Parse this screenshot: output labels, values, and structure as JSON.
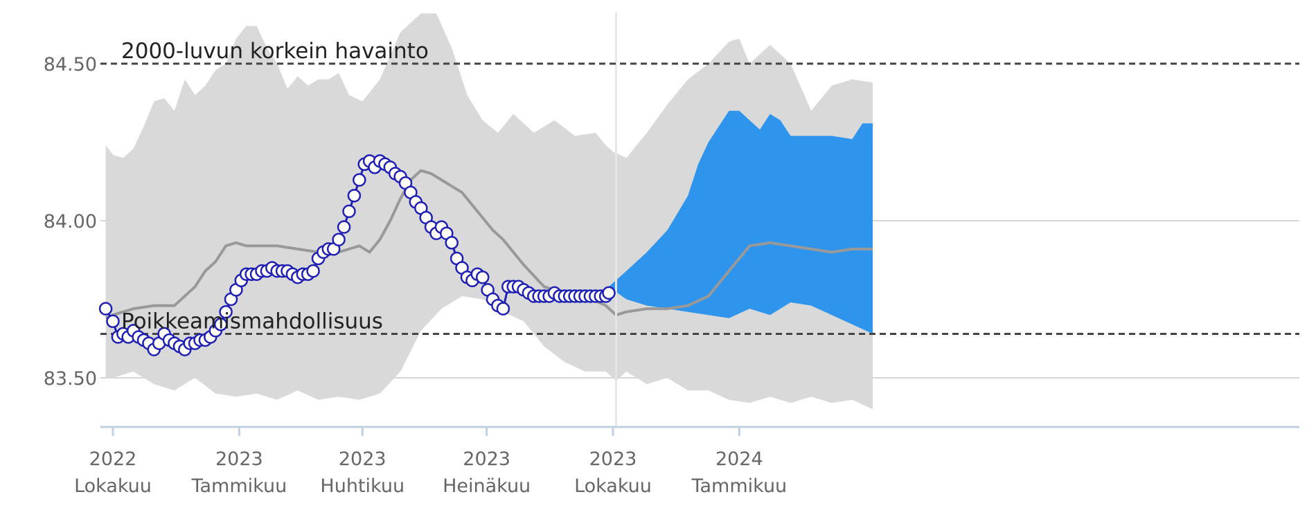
{
  "chart_data": {
    "type": "line",
    "title": "",
    "xlabel": "",
    "ylabel": "",
    "ylim": [
      83.35,
      84.76
    ],
    "xlim_days": [
      0,
      740
    ],
    "forecast_start_day": 490,
    "colors": {
      "range_band": "#d9d9d9",
      "median_line": "#999999",
      "observed_fill": "#ffffff",
      "observed_stroke": "#1f1fb4",
      "forecast_band": "#2f95ec",
      "reference_line": "#444444",
      "grid": "#d6d6d6",
      "axis": "#c0d0e0",
      "divider": "#e6e6e6"
    },
    "y_ticks": [
      {
        "value": 83.5,
        "label": "83.50"
      },
      {
        "value": 84.0,
        "label": "84.00"
      },
      {
        "value": 84.5,
        "label": "84.50"
      }
    ],
    "x_ticks": [
      {
        "day": 0,
        "year": "2022",
        "month": "Lokakuu"
      },
      {
        "day": 123,
        "year": "2023",
        "month": "Tammikuu"
      },
      {
        "day": 243,
        "year": "2023",
        "month": "Huhtikuu"
      },
      {
        "day": 364,
        "year": "2023",
        "month": "Heinäkuu"
      },
      {
        "day": 487,
        "year": "2023",
        "month": "Lokakuu"
      },
      {
        "day": 610,
        "year": "2024",
        "month": "Tammikuu"
      }
    ],
    "reference_lines": [
      {
        "name": "highest",
        "value": 84.5,
        "label": "2000-luvun korkein havainto"
      },
      {
        "name": "deviation",
        "value": 83.64,
        "label": "Poikkeamismahdollisuus"
      }
    ],
    "series": [
      {
        "name": "range-max",
        "x": [
          -7,
          0,
          10,
          20,
          30,
          40,
          50,
          60,
          70,
          80,
          90,
          100,
          110,
          120,
          130,
          140,
          150,
          160,
          170,
          180,
          190,
          200,
          210,
          220,
          230,
          243,
          260,
          280,
          300,
          315,
          330,
          345,
          360,
          375,
          390,
          410,
          430,
          450,
          470,
          480,
          487,
          500,
          520,
          540,
          560,
          580,
          600,
          610,
          620,
          640,
          660,
          680,
          700,
          720,
          740
        ],
        "values": [
          84.24,
          84.21,
          84.2,
          84.23,
          84.3,
          84.38,
          84.39,
          84.35,
          84.45,
          84.4,
          84.43,
          84.48,
          84.5,
          84.58,
          84.62,
          84.62,
          84.55,
          84.5,
          84.42,
          84.46,
          84.43,
          84.45,
          84.45,
          84.47,
          84.4,
          84.38,
          84.45,
          84.6,
          84.66,
          84.66,
          84.55,
          84.4,
          84.32,
          84.28,
          84.34,
          84.28,
          84.32,
          84.27,
          84.28,
          84.24,
          84.22,
          84.2,
          84.28,
          84.37,
          84.45,
          84.5,
          84.57,
          84.58,
          84.5,
          84.56,
          84.5,
          84.35,
          84.43,
          84.45,
          84.44
        ]
      },
      {
        "name": "range-min",
        "x": [
          -7,
          0,
          20,
          40,
          60,
          80,
          100,
          120,
          140,
          160,
          180,
          200,
          220,
          240,
          260,
          280,
          300,
          320,
          340,
          360,
          380,
          400,
          420,
          440,
          460,
          480,
          490,
          500,
          520,
          540,
          560,
          580,
          600,
          620,
          640,
          660,
          680,
          700,
          720,
          740
        ],
        "values": [
          83.5,
          83.5,
          83.52,
          83.48,
          83.46,
          83.5,
          83.45,
          83.44,
          83.45,
          83.43,
          83.46,
          83.43,
          83.44,
          83.43,
          83.45,
          83.52,
          83.65,
          83.72,
          83.76,
          83.75,
          83.71,
          83.68,
          83.6,
          83.55,
          83.52,
          83.52,
          83.49,
          83.52,
          83.48,
          83.5,
          83.46,
          83.46,
          83.43,
          83.42,
          83.44,
          83.42,
          83.44,
          83.42,
          83.43,
          83.4
        ]
      },
      {
        "name": "median",
        "x": [
          -7,
          0,
          20,
          40,
          60,
          80,
          90,
          100,
          110,
          120,
          130,
          140,
          160,
          180,
          200,
          220,
          240,
          250,
          260,
          270,
          280,
          290,
          300,
          310,
          320,
          330,
          340,
          350,
          360,
          370,
          380,
          390,
          400,
          420,
          440,
          450,
          460,
          480,
          490,
          500,
          520,
          540,
          560,
          580,
          600,
          620,
          640,
          660,
          680,
          700,
          720,
          740
        ],
        "values": [
          83.69,
          83.7,
          83.72,
          83.73,
          83.73,
          83.79,
          83.84,
          83.87,
          83.92,
          83.93,
          83.92,
          83.92,
          83.92,
          83.91,
          83.9,
          83.9,
          83.92,
          83.9,
          83.94,
          84.0,
          84.07,
          84.13,
          84.16,
          84.15,
          84.13,
          84.11,
          84.09,
          84.05,
          84.01,
          83.97,
          83.94,
          83.9,
          83.86,
          83.79,
          83.77,
          83.76,
          83.76,
          83.73,
          83.7,
          83.71,
          83.72,
          83.72,
          83.73,
          83.76,
          83.84,
          83.92,
          83.93,
          83.92,
          83.91,
          83.9,
          83.91,
          83.91
        ]
      },
      {
        "name": "forecast-max",
        "x": [
          483,
          500,
          520,
          540,
          560,
          570,
          580,
          590,
          600,
          610,
          620,
          630,
          640,
          650,
          660,
          680,
          700,
          720,
          730,
          740
        ],
        "values": [
          83.79,
          83.84,
          83.9,
          83.97,
          84.08,
          84.18,
          84.25,
          84.3,
          84.35,
          84.35,
          84.32,
          84.29,
          84.34,
          84.32,
          84.27,
          84.27,
          84.27,
          84.26,
          84.31,
          84.31
        ]
      },
      {
        "name": "forecast-min",
        "x": [
          483,
          500,
          520,
          540,
          560,
          580,
          600,
          620,
          640,
          660,
          680,
          700,
          720,
          740
        ],
        "values": [
          83.79,
          83.75,
          83.73,
          83.72,
          83.71,
          83.7,
          83.69,
          83.72,
          83.7,
          83.74,
          83.73,
          83.7,
          83.67,
          83.64
        ]
      },
      {
        "name": "observed",
        "x": [
          -7,
          0,
          5,
          10,
          15,
          20,
          25,
          30,
          35,
          40,
          45,
          50,
          55,
          60,
          65,
          70,
          75,
          80,
          85,
          90,
          95,
          100,
          105,
          110,
          115,
          120,
          125,
          130,
          135,
          140,
          145,
          150,
          155,
          160,
          165,
          170,
          175,
          180,
          185,
          190,
          195,
          200,
          205,
          210,
          215,
          220,
          225,
          230,
          235,
          240,
          245,
          250,
          255,
          260,
          265,
          270,
          275,
          280,
          285,
          290,
          295,
          300,
          305,
          310,
          315,
          320,
          325,
          330,
          335,
          340,
          345,
          350,
          355,
          360,
          365,
          370,
          375,
          380,
          385,
          390,
          395,
          400,
          405,
          410,
          415,
          420,
          425,
          430,
          435,
          440,
          445,
          450,
          455,
          460,
          465,
          470,
          475,
          480,
          483
        ],
        "values": [
          83.72,
          83.68,
          83.63,
          83.64,
          83.63,
          83.65,
          83.63,
          83.62,
          83.61,
          83.59,
          83.61,
          83.64,
          83.62,
          83.61,
          83.6,
          83.59,
          83.61,
          83.61,
          83.62,
          83.62,
          83.63,
          83.65,
          83.67,
          83.71,
          83.75,
          83.78,
          83.81,
          83.83,
          83.83,
          83.83,
          83.84,
          83.84,
          83.85,
          83.84,
          83.84,
          83.84,
          83.83,
          83.82,
          83.83,
          83.83,
          83.84,
          83.88,
          83.9,
          83.91,
          83.91,
          83.94,
          83.98,
          84.03,
          84.08,
          84.13,
          84.18,
          84.19,
          84.17,
          84.19,
          84.18,
          84.17,
          84.15,
          84.14,
          84.12,
          84.09,
          84.06,
          84.04,
          84.01,
          83.98,
          83.96,
          83.98,
          83.96,
          83.93,
          83.88,
          83.85,
          83.82,
          83.81,
          83.83,
          83.82,
          83.78,
          83.75,
          83.73,
          83.72,
          83.79,
          83.79,
          83.79,
          83.78,
          83.77,
          83.76,
          83.76,
          83.76,
          83.76,
          83.77,
          83.76,
          83.76,
          83.76,
          83.76,
          83.76,
          83.76,
          83.76,
          83.76,
          83.76,
          83.76,
          83.77
        ]
      }
    ]
  }
}
